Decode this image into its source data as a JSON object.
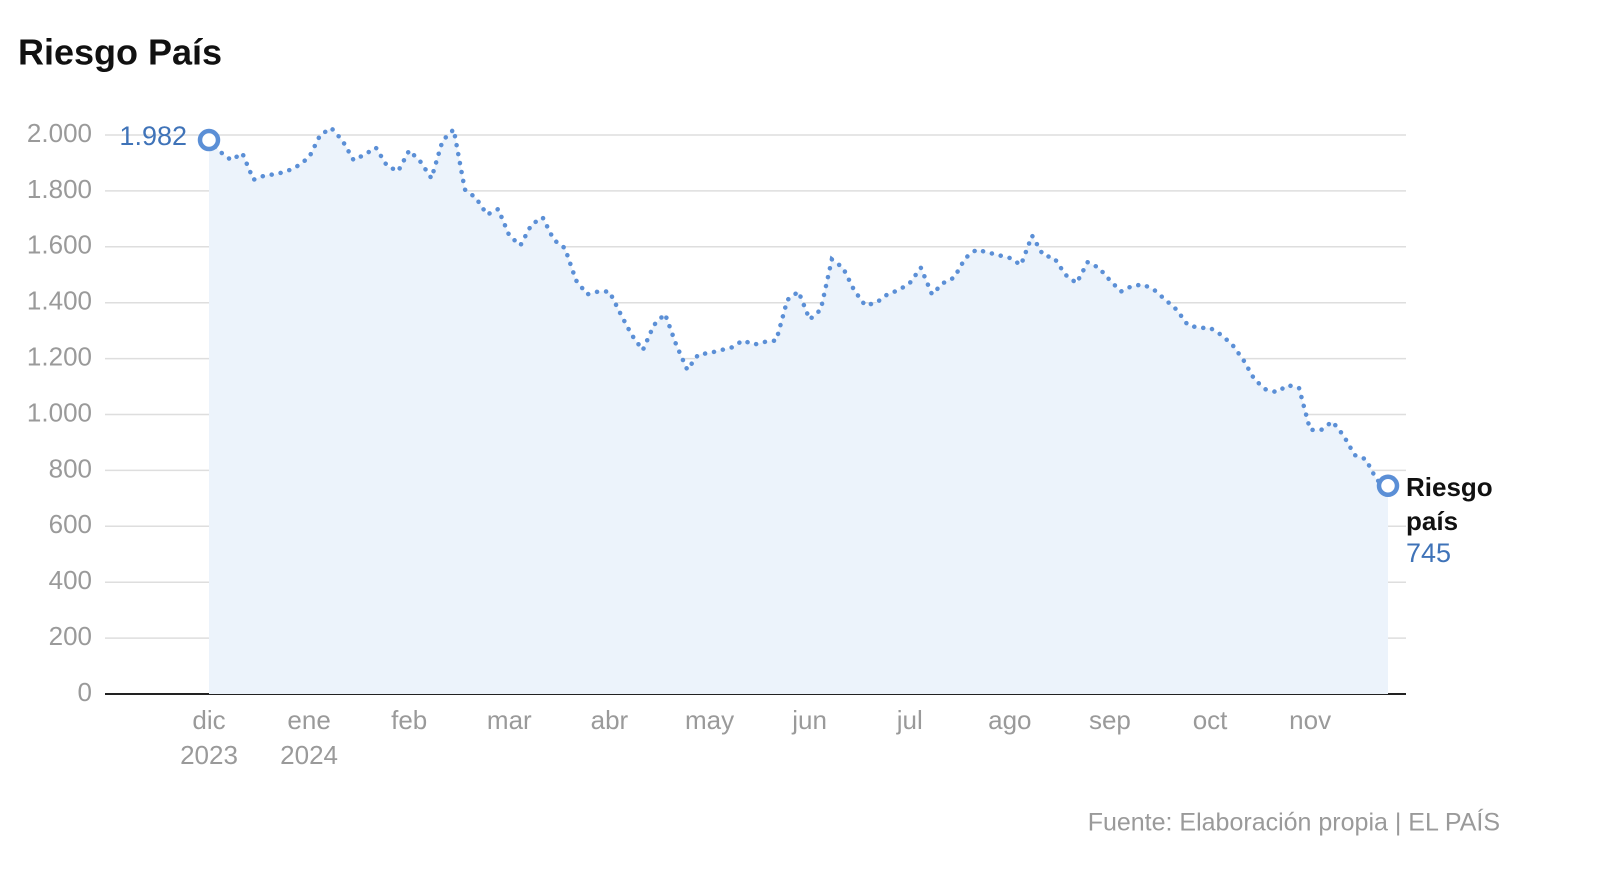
{
  "chart_data": {
    "type": "line",
    "title": "Riesgo País",
    "source": "Fuente: Elaboración propia | EL PAÍS",
    "categories": [
      "dic 2023",
      null,
      null,
      null,
      null,
      null,
      null,
      null,
      null,
      "ene 2024",
      null,
      null,
      null,
      null,
      null,
      null,
      null,
      null,
      "feb",
      null,
      null,
      null,
      null,
      null,
      null,
      null,
      null,
      "mar",
      null,
      null,
      null,
      null,
      null,
      null,
      null,
      null,
      "abr",
      null,
      null,
      null,
      null,
      null,
      null,
      null,
      null,
      "may",
      null,
      null,
      null,
      null,
      null,
      null,
      null,
      null,
      "jun",
      null,
      null,
      null,
      null,
      null,
      null,
      null,
      null,
      "jul",
      null,
      null,
      null,
      null,
      null,
      null,
      null,
      null,
      "ago",
      null,
      null,
      null,
      null,
      null,
      null,
      null,
      null,
      "sep",
      null,
      null,
      null,
      null,
      null,
      null,
      null,
      null,
      "oct",
      null,
      null,
      null,
      null,
      null,
      null,
      null,
      null,
      "nov",
      null,
      null,
      null,
      null,
      null,
      null,
      null
    ],
    "series": [
      {
        "name": "Riesgo país",
        "color": "#5b8fd6",
        "values": [
          1982,
          1940,
          1910,
          1935,
          1840,
          1855,
          1860,
          1870,
          1890,
          1920,
          2000,
          2025,
          1980,
          1910,
          1930,
          1955,
          1890,
          1870,
          1945,
          1905,
          1845,
          1980,
          2020,
          1805,
          1775,
          1715,
          1735,
          1640,
          1605,
          1680,
          1705,
          1625,
          1595,
          1480,
          1430,
          1440,
          1440,
          1360,
          1285,
          1230,
          1320,
          1360,
          1250,
          1160,
          1215,
          1220,
          1230,
          1240,
          1265,
          1250,
          1260,
          1265,
          1410,
          1440,
          1340,
          1375,
          1555,
          1525,
          1445,
          1390,
          1400,
          1430,
          1445,
          1470,
          1525,
          1430,
          1470,
          1490,
          1560,
          1590,
          1580,
          1570,
          1560,
          1535,
          1640,
          1570,
          1560,
          1500,
          1470,
          1545,
          1525,
          1480,
          1440,
          1460,
          1465,
          1445,
          1410,
          1375,
          1320,
          1310,
          1310,
          1285,
          1250,
          1195,
          1125,
          1090,
          1080,
          1105,
          1095,
          945,
          945,
          975,
          925,
          855,
          840,
          765,
          745
        ],
        "value_labels": [
          "1.982",
          null,
          null,
          null,
          null,
          null,
          null,
          null,
          null,
          null,
          null,
          null,
          null,
          null,
          null,
          null,
          null,
          null,
          null,
          null,
          null,
          null,
          null,
          null,
          null,
          null,
          null,
          null,
          null,
          null,
          null,
          null,
          null,
          null,
          null,
          null,
          null,
          null,
          null,
          null,
          null,
          null,
          null,
          null,
          null,
          null,
          null,
          null,
          null,
          null,
          null,
          null,
          null,
          null,
          null,
          null,
          null,
          null,
          null,
          null,
          null,
          null,
          null,
          null,
          null,
          null,
          null,
          null,
          null,
          null,
          null,
          null,
          null,
          null,
          null,
          null,
          null,
          null,
          null,
          null,
          null,
          null,
          null,
          null,
          null,
          null,
          null,
          null,
          null,
          null,
          null,
          null,
          null,
          null,
          null,
          null,
          null,
          null,
          null,
          null,
          null,
          null,
          null,
          null,
          null,
          null,
          "745"
        ]
      }
    ],
    "ylim": [
      0,
      2000
    ],
    "yticks": [
      0,
      200,
      400,
      600,
      800,
      {
        "value": 1000,
        "label": "1.000"
      },
      {
        "value": 1200,
        "label": "1.200"
      },
      {
        "value": 1400,
        "label": "1.400"
      },
      {
        "value": 1600,
        "label": "1.600"
      },
      {
        "value": 1800,
        "label": "1.800"
      },
      {
        "value": 2000,
        "label": "2.000"
      }
    ],
    "grid": true
  }
}
